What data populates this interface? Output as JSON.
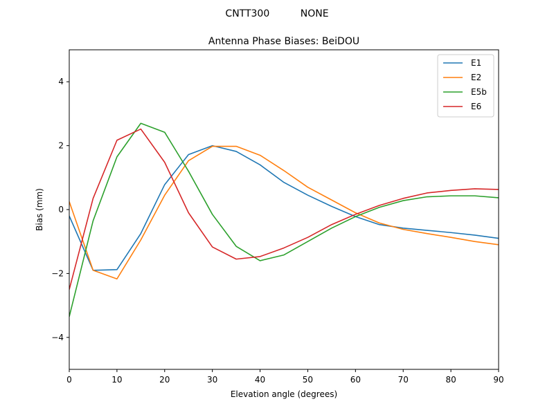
{
  "figure": {
    "suptitle": "CNTT300          NONE"
  },
  "chart_data": {
    "type": "line",
    "title": "Antenna Phase Biases: BeiDOU",
    "xlabel": "Elevation angle (degrees)",
    "ylabel": "Bias (mm)",
    "xlim": [
      0,
      90
    ],
    "ylim": [
      -5,
      5
    ],
    "xticks": [
      0,
      10,
      20,
      30,
      40,
      50,
      60,
      70,
      80,
      90
    ],
    "yticks": [
      -4,
      -2,
      0,
      2,
      4
    ],
    "x": [
      0,
      5,
      10,
      15,
      20,
      25,
      30,
      35,
      40,
      45,
      50,
      55,
      60,
      65,
      70,
      75,
      80,
      85,
      90
    ],
    "grid": false,
    "legend_position": "top-right",
    "series": [
      {
        "name": "E1",
        "color": "#1f77b4",
        "values": [
          -0.2,
          -1.9,
          -1.88,
          -0.75,
          0.78,
          1.72,
          2.0,
          1.82,
          1.4,
          0.85,
          0.45,
          0.1,
          -0.22,
          -0.47,
          -0.58,
          -0.65,
          -0.72,
          -0.8,
          -0.9
        ]
      },
      {
        "name": "E2",
        "color": "#ff7f0e",
        "values": [
          0.25,
          -1.9,
          -2.17,
          -0.95,
          0.45,
          1.53,
          1.98,
          1.98,
          1.7,
          1.22,
          0.7,
          0.3,
          -0.1,
          -0.42,
          -0.62,
          -0.75,
          -0.87,
          -1.0,
          -1.1
        ]
      },
      {
        "name": "E5b",
        "color": "#2ca02c",
        "values": [
          -3.35,
          -0.35,
          1.65,
          2.7,
          2.42,
          1.2,
          -0.15,
          -1.15,
          -1.6,
          -1.42,
          -1.0,
          -0.58,
          -0.22,
          0.07,
          0.28,
          0.4,
          0.43,
          0.43,
          0.37
        ]
      },
      {
        "name": "E6",
        "color": "#d62728",
        "values": [
          -2.5,
          0.35,
          2.17,
          2.52,
          1.48,
          -0.1,
          -1.17,
          -1.55,
          -1.47,
          -1.2,
          -0.87,
          -0.47,
          -0.15,
          0.13,
          0.35,
          0.52,
          0.6,
          0.65,
          0.63
        ]
      }
    ]
  }
}
